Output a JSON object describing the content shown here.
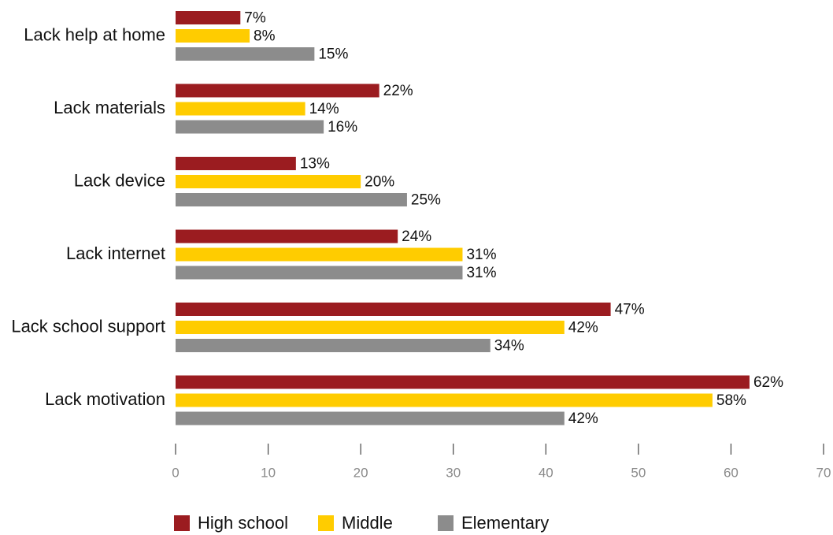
{
  "chart_data": {
    "type": "bar",
    "orientation": "horizontal",
    "categories": [
      "Lack help at home",
      "Lack materials",
      "Lack device",
      "Lack internet",
      "Lack school support",
      "Lack motivation"
    ],
    "series": [
      {
        "name": "High school",
        "color": "#9b1c20",
        "values": [
          7,
          22,
          13,
          24,
          47,
          62
        ]
      },
      {
        "name": "Middle",
        "color": "#ffcc00",
        "values": [
          8,
          14,
          20,
          31,
          42,
          58
        ]
      },
      {
        "name": "Elementary",
        "color": "#8c8c8c",
        "values": [
          15,
          16,
          25,
          31,
          34,
          42
        ]
      }
    ],
    "value_suffix": "%",
    "xlim": [
      0,
      70
    ],
    "xticks": [
      0,
      10,
      20,
      30,
      40,
      50,
      60,
      70
    ],
    "grid": false,
    "legend_position": "bottom",
    "title": "",
    "xlabel": "",
    "ylabel": ""
  }
}
